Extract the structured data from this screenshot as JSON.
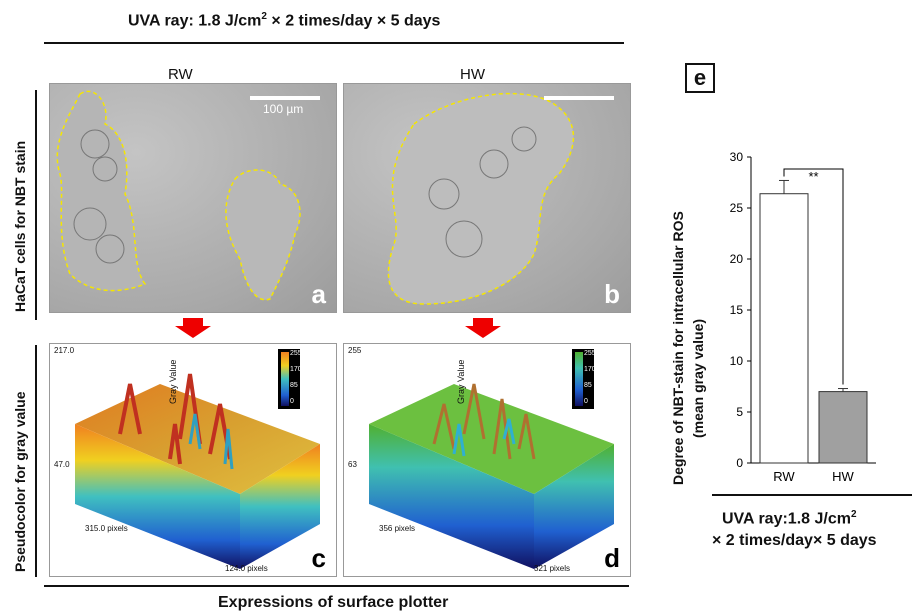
{
  "header": {
    "title": "UVA ray: 1.8 J/cm",
    "title_sup": "2",
    "title_rest": "× 2 times/day × 5 days"
  },
  "columns": {
    "left": "RW",
    "right": "HW"
  },
  "row_labels": {
    "top": "HaCaT cells for NBT stain",
    "bottom": "Pseudocolor for gray value"
  },
  "scale_bar": "100 µm",
  "panels": {
    "a": "a",
    "b": "b",
    "c": "c",
    "d": "d"
  },
  "plot_c": {
    "zmax": "217.0",
    "zmin": "47.0",
    "xlabel": "315.0 pixels",
    "ylabel": "124.0 pixels",
    "axis_title": "Gray Value",
    "colorbar_ticks": [
      "255",
      "170",
      "85",
      "0"
    ]
  },
  "plot_d": {
    "zmax": "255",
    "zmin": "63",
    "xlabel": "356 pixels",
    "ylabel": "321 pixels",
    "axis_title": "Gray Value",
    "colorbar_ticks": [
      "255",
      "170",
      "85",
      "0"
    ]
  },
  "footer": "Expressions of surface plotter",
  "panel_e": {
    "label": "e",
    "ylabel_line1": "Degree of NBT-stain for intracellular ROS",
    "ylabel_line2": "(mean gray value)",
    "xcaption_line1": "UVA ray:1.8 J/cm",
    "xcaption_sup": "2",
    "xcaption_line2": "× 2 times/day× 5 days",
    "significance": "**"
  },
  "chart_data": {
    "type": "bar",
    "categories": [
      "RW",
      "HW"
    ],
    "values": [
      26.4,
      7.0
    ],
    "errors": [
      1.3,
      0.3
    ],
    "bar_colors": [
      "#ffffff",
      "#a0a0a0"
    ],
    "yticks": [
      0,
      5,
      10,
      15,
      20,
      25,
      30
    ],
    "ylim": [
      0,
      30
    ]
  }
}
